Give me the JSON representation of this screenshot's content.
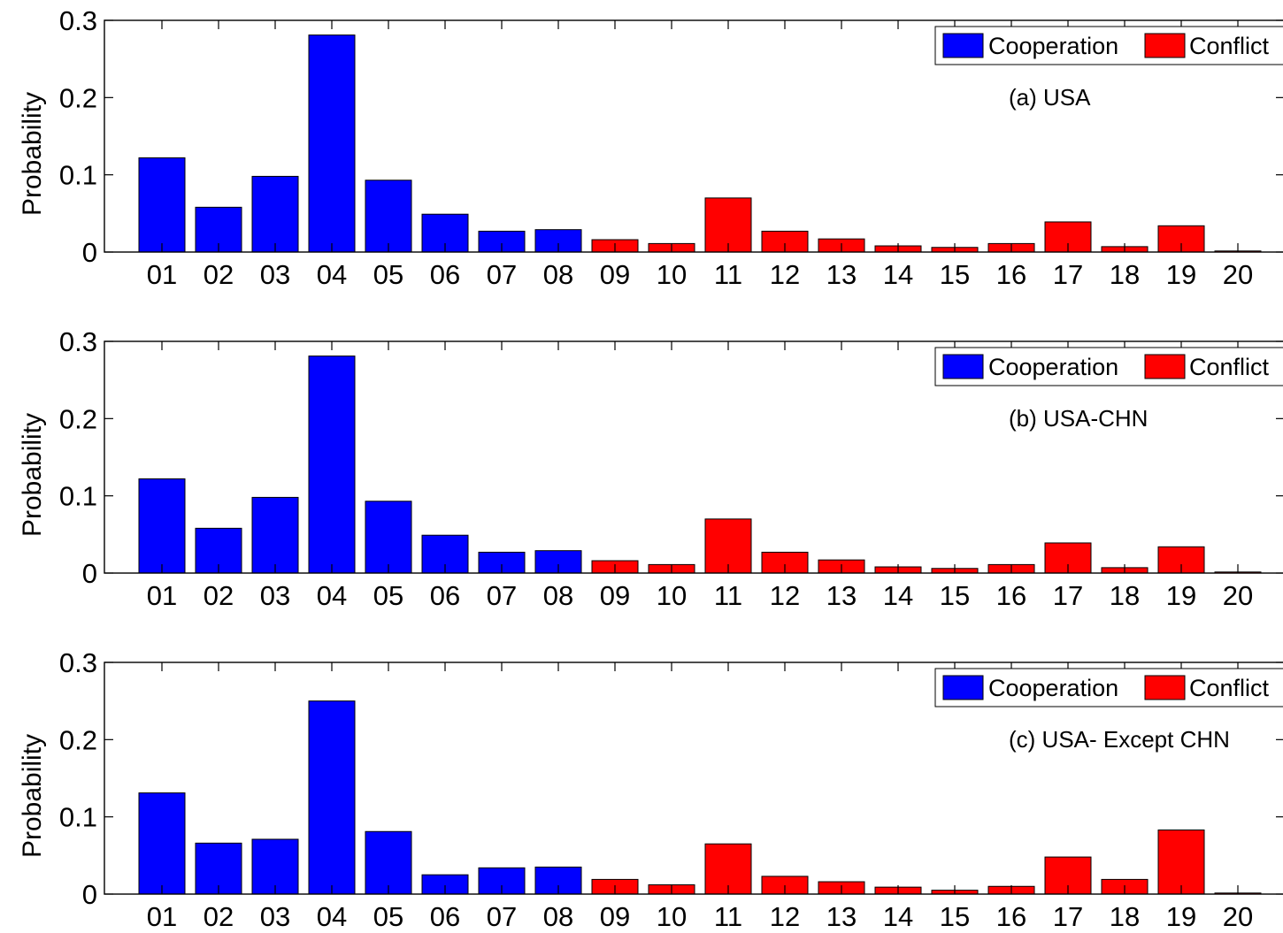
{
  "chart_data": [
    {
      "type": "bar",
      "annotation": "(a) USA",
      "ylabel": "Probability",
      "ylim": [
        0,
        0.3
      ],
      "yticks": [
        "0",
        "0.1",
        "0.2",
        "0.3"
      ],
      "categories": [
        "01",
        "02",
        "03",
        "04",
        "05",
        "06",
        "07",
        "08",
        "09",
        "10",
        "11",
        "12",
        "13",
        "14",
        "15",
        "16",
        "17",
        "18",
        "19",
        "20"
      ],
      "values": [
        0.122,
        0.058,
        0.098,
        0.281,
        0.093,
        0.049,
        0.027,
        0.029,
        0.016,
        0.011,
        0.07,
        0.027,
        0.017,
        0.008,
        0.006,
        0.011,
        0.039,
        0.007,
        0.034,
        0.001
      ],
      "colors": [
        "#0000ff",
        "#0000ff",
        "#0000ff",
        "#0000ff",
        "#0000ff",
        "#0000ff",
        "#0000ff",
        "#0000ff",
        "#ff0000",
        "#ff0000",
        "#ff0000",
        "#ff0000",
        "#ff0000",
        "#ff0000",
        "#ff0000",
        "#ff0000",
        "#ff0000",
        "#ff0000",
        "#ff0000",
        "#ff0000"
      ],
      "legend": [
        {
          "label": "Cooperation",
          "color": "#0000ff"
        },
        {
          "label": "Conflict",
          "color": "#ff0000"
        }
      ],
      "legend_position": "top-right"
    },
    {
      "type": "bar",
      "annotation": "(b) USA-CHN",
      "ylabel": "Probability",
      "ylim": [
        0,
        0.3
      ],
      "yticks": [
        "0",
        "0.1",
        "0.2",
        "0.3"
      ],
      "categories": [
        "01",
        "02",
        "03",
        "04",
        "05",
        "06",
        "07",
        "08",
        "09",
        "10",
        "11",
        "12",
        "13",
        "14",
        "15",
        "16",
        "17",
        "18",
        "19",
        "20"
      ],
      "values": [
        0.122,
        0.058,
        0.098,
        0.281,
        0.093,
        0.049,
        0.027,
        0.029,
        0.016,
        0.011,
        0.07,
        0.027,
        0.017,
        0.008,
        0.006,
        0.011,
        0.039,
        0.007,
        0.034,
        0.001
      ],
      "colors": [
        "#0000ff",
        "#0000ff",
        "#0000ff",
        "#0000ff",
        "#0000ff",
        "#0000ff",
        "#0000ff",
        "#0000ff",
        "#ff0000",
        "#ff0000",
        "#ff0000",
        "#ff0000",
        "#ff0000",
        "#ff0000",
        "#ff0000",
        "#ff0000",
        "#ff0000",
        "#ff0000",
        "#ff0000",
        "#ff0000"
      ],
      "legend": [
        {
          "label": "Cooperation",
          "color": "#0000ff"
        },
        {
          "label": "Conflict",
          "color": "#ff0000"
        }
      ],
      "legend_position": "top-right"
    },
    {
      "type": "bar",
      "annotation": "(c) USA- Except CHN",
      "ylabel": "Probability",
      "ylim": [
        0,
        0.3
      ],
      "yticks": [
        "0",
        "0.1",
        "0.2",
        "0.3"
      ],
      "categories": [
        "01",
        "02",
        "03",
        "04",
        "05",
        "06",
        "07",
        "08",
        "09",
        "10",
        "11",
        "12",
        "13",
        "14",
        "15",
        "16",
        "17",
        "18",
        "19",
        "20"
      ],
      "values": [
        0.131,
        0.066,
        0.071,
        0.25,
        0.081,
        0.025,
        0.034,
        0.035,
        0.019,
        0.012,
        0.065,
        0.023,
        0.016,
        0.009,
        0.005,
        0.01,
        0.048,
        0.019,
        0.083,
        0.001
      ],
      "colors": [
        "#0000ff",
        "#0000ff",
        "#0000ff",
        "#0000ff",
        "#0000ff",
        "#0000ff",
        "#0000ff",
        "#0000ff",
        "#ff0000",
        "#ff0000",
        "#ff0000",
        "#ff0000",
        "#ff0000",
        "#ff0000",
        "#ff0000",
        "#ff0000",
        "#ff0000",
        "#ff0000",
        "#ff0000",
        "#ff0000"
      ],
      "legend": [
        {
          "label": "Cooperation",
          "color": "#0000ff"
        },
        {
          "label": "Conflict",
          "color": "#ff0000"
        }
      ],
      "legend_position": "top-right"
    }
  ]
}
